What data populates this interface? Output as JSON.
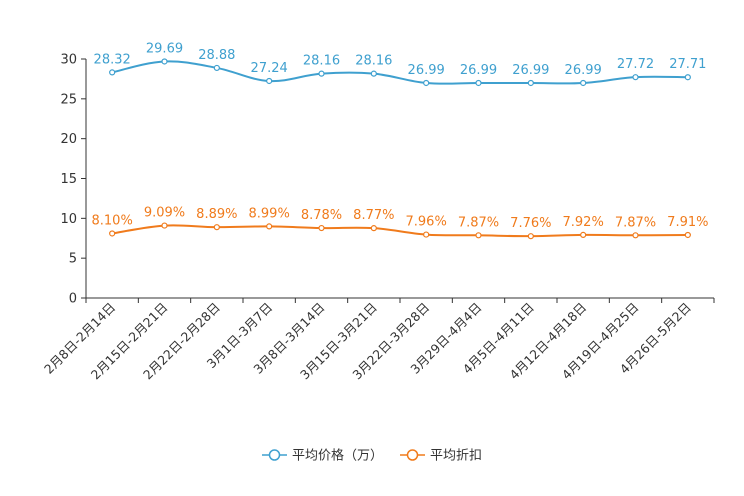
{
  "chart_data": {
    "type": "line",
    "categories": [
      "2月8日-2月14日",
      "2月15日-2月21日",
      "2月22日-2月28日",
      "3月1日-3月7日",
      "3月8日-3月14日",
      "3月15日-3月21日",
      "3月22日-3月28日",
      "3月29日-4月4日",
      "4月5日-4月11日",
      "4月12日-4月18日",
      "4月19日-4月25日",
      "4月26日-5月2日"
    ],
    "ylim": [
      0,
      30
    ],
    "yticks": [
      0,
      5,
      10,
      15,
      20,
      25,
      30
    ],
    "series": [
      {
        "name": "平均价格（万）",
        "color": "#3fa0cf",
        "values": [
          28.32,
          29.69,
          28.88,
          27.24,
          28.16,
          28.16,
          26.99,
          26.99,
          26.99,
          26.99,
          27.72,
          27.71
        ],
        "labels": [
          "28.32",
          "29.69",
          "28.88",
          "27.24",
          "28.16",
          "28.16",
          "26.99",
          "26.99",
          "26.99",
          "26.99",
          "27.72",
          "27.71"
        ]
      },
      {
        "name": "平均折扣",
        "color": "#f07b1c",
        "values": [
          8.1,
          9.09,
          8.89,
          8.99,
          8.78,
          8.77,
          7.96,
          7.87,
          7.76,
          7.92,
          7.87,
          7.91
        ],
        "labels": [
          "8.10%",
          "9.09%",
          "8.89%",
          "8.99%",
          "8.78%",
          "8.77%",
          "7.96%",
          "7.87%",
          "7.76%",
          "7.92%",
          "7.87%",
          "7.91%"
        ]
      }
    ],
    "legend_position": "bottom-center"
  }
}
